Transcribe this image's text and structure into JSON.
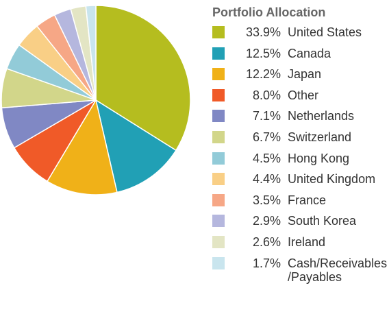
{
  "chart_data": {
    "type": "pie",
    "title": "Portfolio Allocation",
    "categories": [
      "United States",
      "Canada",
      "Japan",
      "Other",
      "Netherlands",
      "Switzerland",
      "Hong Kong",
      "United Kingdom",
      "France",
      "South Korea",
      "Ireland",
      "Cash/Receivables\n/Payables"
    ],
    "values": [
      33.9,
      12.5,
      12.2,
      8.0,
      7.1,
      6.7,
      4.5,
      4.4,
      3.5,
      2.9,
      2.6,
      1.7
    ],
    "value_labels": [
      "33.9%",
      "12.5%",
      "12.2%",
      "8.0%",
      "7.1%",
      "6.7%",
      "4.5%",
      "4.4%",
      "3.5%",
      "2.9%",
      "2.6%",
      "1.7%"
    ],
    "colors": [
      "#b5bd1f",
      "#21a0b5",
      "#f0b118",
      "#f05a28",
      "#8088c4",
      "#d2d68a",
      "#92cbd8",
      "#f9cf86",
      "#f6a786",
      "#b5b7de",
      "#e3e5c4",
      "#c9e5ee"
    ]
  }
}
